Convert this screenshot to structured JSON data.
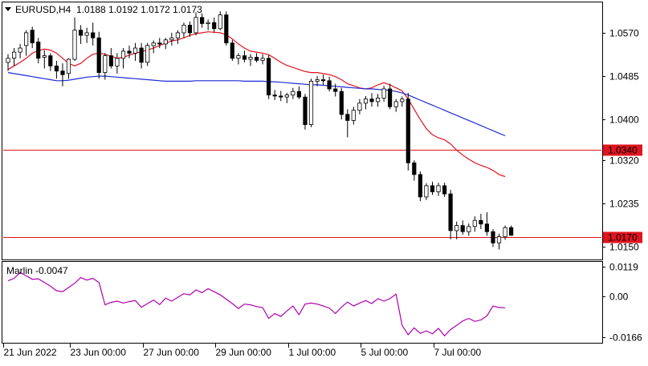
{
  "header": {
    "triangle_icon": "triangle-down-icon",
    "title": "EURUSD,H4  1.0188 1.0192 1.0172 1.0173"
  },
  "indicator": {
    "label": "Marlin -0.0047"
  },
  "colors": {
    "background": "#ffffff",
    "frame": "#000000",
    "ma_red": "#e0141e",
    "ma_blue": "#1e2bd8",
    "level_line": "#e0141e",
    "marlin": "#b000b0",
    "level_tag_bg": "#e0141e",
    "level_tag_text": "#ffffff",
    "candle_up_fill": "#ffffff",
    "candle_down_fill": "#000000"
  },
  "chart_data": [
    {
      "type": "candlestick",
      "symbol": "EURUSD",
      "timeframe": "H4",
      "ohlc_last": {
        "open": 1.0188,
        "high": 1.0192,
        "low": 1.0172,
        "close": 1.0173
      },
      "y_ticks": [
        "1.0570",
        "1.0485",
        "1.0400",
        "1.0320",
        "1.0235",
        "1.0150"
      ],
      "ylim": [
        1.0127,
        1.0628
      ],
      "x_ticks": [
        "21 Jun 2022",
        "23 Jun 00:00",
        "27 Jun 00:00",
        "29 Jun 00:00",
        "1 Jul 00:00",
        "5 Jul 00:00",
        "7 Jul 00:00"
      ],
      "horizontal_levels": [
        {
          "value": 1.034,
          "label": "1.0340"
        },
        {
          "value": 1.017,
          "label": "1.0170"
        }
      ],
      "candles": [
        [
          1.0512,
          1.0528,
          1.0495,
          1.052
        ],
        [
          1.052,
          1.054,
          1.0505,
          1.0532
        ],
        [
          1.0532,
          1.0548,
          1.052,
          1.054
        ],
        [
          1.0545,
          1.0575,
          1.0525,
          1.057
        ],
        [
          1.0575,
          1.0582,
          1.054,
          1.055
        ],
        [
          1.0552,
          1.056,
          1.051,
          1.052
        ],
        [
          1.0522,
          1.0536,
          1.05,
          1.0525
        ],
        [
          1.0525,
          1.053,
          1.0495,
          1.0505
        ],
        [
          1.0505,
          1.0515,
          1.048,
          1.0495
        ],
        [
          1.0495,
          1.051,
          1.0465,
          1.0488
        ],
        [
          1.049,
          1.052,
          1.048,
          1.0518
        ],
        [
          1.0518,
          1.06,
          1.0515,
          1.0575
        ],
        [
          1.0575,
          1.0585,
          1.0548,
          1.0565
        ],
        [
          1.0565,
          1.058,
          1.055,
          1.057
        ],
        [
          1.057,
          1.059,
          1.0545,
          1.056
        ],
        [
          1.056,
          1.0572,
          1.048,
          1.0492
        ],
        [
          1.0492,
          1.053,
          1.0478,
          1.0525
        ],
        [
          1.0525,
          1.054,
          1.05,
          1.0505
        ],
        [
          1.0505,
          1.053,
          1.049,
          1.052
        ],
        [
          1.052,
          1.054,
          1.05,
          1.0534
        ],
        [
          1.0534,
          1.0545,
          1.052,
          1.053
        ],
        [
          1.053,
          1.055,
          1.0515,
          1.054
        ],
        [
          1.054,
          1.055,
          1.05,
          1.0512
        ],
        [
          1.0512,
          1.055,
          1.0505,
          1.0545
        ],
        [
          1.0545,
          1.0555,
          1.053,
          1.055
        ],
        [
          1.055,
          1.056,
          1.054,
          1.0548
        ],
        [
          1.0548,
          1.056,
          1.0538,
          1.0556
        ],
        [
          1.0556,
          1.057,
          1.0545,
          1.056
        ],
        [
          1.056,
          1.0575,
          1.0548,
          1.057
        ],
        [
          1.057,
          1.059,
          1.056,
          1.0585
        ],
        [
          1.0585,
          1.0592,
          1.0562,
          1.057
        ],
        [
          1.057,
          1.061,
          1.0565,
          1.06
        ],
        [
          1.06,
          1.0608,
          1.058,
          1.0588
        ],
        [
          1.0588,
          1.0596,
          1.0575,
          1.059
        ],
        [
          1.059,
          1.06,
          1.057,
          1.0578
        ],
        [
          1.0578,
          1.0612,
          1.0575,
          1.0605
        ],
        [
          1.0605,
          1.0612,
          1.0545,
          1.055
        ],
        [
          1.055,
          1.0556,
          1.0515,
          1.052
        ],
        [
          1.052,
          1.053,
          1.0508,
          1.0525
        ],
        [
          1.0525,
          1.0535,
          1.0512,
          1.0518
        ],
        [
          1.0518,
          1.0528,
          1.0505,
          1.0522
        ],
        [
          1.0522,
          1.053,
          1.0512,
          1.0516
        ],
        [
          1.0516,
          1.0528,
          1.0508,
          1.052
        ],
        [
          1.052,
          1.0526,
          1.044,
          1.0448
        ],
        [
          1.0448,
          1.0458,
          1.0438,
          1.0446
        ],
        [
          1.0446,
          1.0456,
          1.0436,
          1.0444
        ],
        [
          1.0444,
          1.0452,
          1.0432,
          1.0448
        ],
        [
          1.0448,
          1.0462,
          1.044,
          1.0455
        ],
        [
          1.0455,
          1.0465,
          1.044,
          1.0444
        ],
        [
          1.0444,
          1.045,
          1.038,
          1.039
        ],
        [
          1.039,
          1.048,
          1.0385,
          1.0475
        ],
        [
          1.0475,
          1.0485,
          1.0465,
          1.0478
        ],
        [
          1.0478,
          1.0488,
          1.0468,
          1.0476
        ],
        [
          1.0476,
          1.0484,
          1.0455,
          1.046
        ],
        [
          1.046,
          1.047,
          1.0445,
          1.0455
        ],
        [
          1.0455,
          1.0462,
          1.04,
          1.041
        ],
        [
          1.041,
          1.042,
          1.0365,
          1.0398
        ],
        [
          1.0398,
          1.0425,
          1.039,
          1.0418
        ],
        [
          1.0418,
          1.044,
          1.041,
          1.0432
        ],
        [
          1.0432,
          1.0446,
          1.042,
          1.044
        ],
        [
          1.044,
          1.0452,
          1.0425,
          1.0435
        ],
        [
          1.0435,
          1.045,
          1.0425,
          1.0442
        ],
        [
          1.0442,
          1.0466,
          1.0435,
          1.046
        ],
        [
          1.046,
          1.047,
          1.042,
          1.0425
        ],
        [
          1.0425,
          1.044,
          1.0415,
          1.0435
        ],
        [
          1.0435,
          1.0445,
          1.0425,
          1.044
        ],
        [
          1.044,
          1.0452,
          1.03,
          1.0315
        ],
        [
          1.0315,
          1.032,
          1.028,
          1.0292
        ],
        [
          1.0292,
          1.0298,
          1.024,
          1.0248
        ],
        [
          1.0248,
          1.0275,
          1.0242,
          1.027
        ],
        [
          1.027,
          1.0278,
          1.0252,
          1.0258
        ],
        [
          1.0258,
          1.0276,
          1.025,
          1.027
        ],
        [
          1.027,
          1.0276,
          1.0248,
          1.0254
        ],
        [
          1.0254,
          1.0262,
          1.0165,
          1.0182
        ],
        [
          1.0182,
          1.02,
          1.0165,
          1.0192
        ],
        [
          1.0192,
          1.0202,
          1.0174,
          1.018
        ],
        [
          1.018,
          1.0196,
          1.0172,
          1.019
        ],
        [
          1.019,
          1.021,
          1.018,
          1.0202
        ],
        [
          1.0202,
          1.0215,
          1.0185,
          1.0195
        ],
        [
          1.0195,
          1.0218,
          1.0172,
          1.018
        ],
        [
          1.018,
          1.0185,
          1.015,
          1.0158
        ],
        [
          1.0158,
          1.0176,
          1.0145,
          1.017
        ],
        [
          1.017,
          1.0192,
          1.0164,
          1.0188
        ],
        [
          1.0188,
          1.0192,
          1.0172,
          1.0173
        ]
      ],
      "ma_fast": [
        1.0498,
        1.0505,
        1.0512,
        1.052,
        1.053,
        1.0535,
        1.0538,
        1.0536,
        1.053,
        1.052,
        1.051,
        1.0505,
        1.051,
        1.052,
        1.0528,
        1.053,
        1.0528,
        1.0524,
        1.052,
        1.0522,
        1.0526,
        1.053,
        1.0533,
        1.0536,
        1.054,
        1.0545,
        1.055,
        1.0554,
        1.0556,
        1.056,
        1.0565,
        1.0568,
        1.057,
        1.0572,
        1.0571,
        1.057,
        1.0566,
        1.0558,
        1.0548,
        1.054,
        1.0534,
        1.0532,
        1.053,
        1.0527,
        1.052,
        1.0512,
        1.0506,
        1.0502,
        1.0498,
        1.0494,
        1.0492,
        1.0492,
        1.049,
        1.0488,
        1.0484,
        1.0478,
        1.047,
        1.0466,
        1.0462,
        1.046,
        1.0462,
        1.0468,
        1.0472,
        1.0468,
        1.0462,
        1.0456,
        1.044,
        1.042,
        1.04,
        1.0382,
        1.037,
        1.0364,
        1.036,
        1.0352,
        1.034,
        1.033,
        1.0322,
        1.0315,
        1.031,
        1.0306,
        1.03,
        1.0292,
        1.0288
      ],
      "ma_slow": [
        1.0492,
        1.049,
        1.0488,
        1.0486,
        1.0484,
        1.0482,
        1.048,
        1.0478,
        1.0476,
        1.0476,
        1.0477,
        1.0479,
        1.0481,
        1.0483,
        1.0484,
        1.0485,
        1.0485,
        1.0484,
        1.0483,
        1.0482,
        1.0481,
        1.048,
        1.0479,
        1.0478,
        1.0477,
        1.0476,
        1.0475,
        1.0475,
        1.0475,
        1.0475,
        1.0475,
        1.0476,
        1.0476,
        1.0476,
        1.0476,
        1.0476,
        1.0476,
        1.0476,
        1.0476,
        1.0475,
        1.0475,
        1.0475,
        1.0475,
        1.0474,
        1.0474,
        1.0473,
        1.0472,
        1.0471,
        1.047,
        1.0469,
        1.0468,
        1.0468,
        1.0467,
        1.0466,
        1.0465,
        1.0464,
        1.0463,
        1.0462,
        1.0461,
        1.046,
        1.046,
        1.0459,
        1.0458,
        1.0457,
        1.0455,
        1.0452,
        1.0448,
        1.0443,
        1.0438,
        1.0433,
        1.0428,
        1.0423,
        1.0418,
        1.0413,
        1.0408,
        1.0403,
        1.0398,
        1.0393,
        1.0388,
        1.0383,
        1.0378,
        1.0373,
        1.0368
      ]
    },
    {
      "type": "line",
      "name": "Marlin",
      "y_ticks": [
        "0.0119",
        "0.00",
        "-0.0166"
      ],
      "ylim": [
        -0.0185,
        0.0135
      ],
      "values": [
        0.0062,
        0.0072,
        0.0095,
        0.0082,
        0.0068,
        0.007,
        0.0055,
        0.004,
        0.0022,
        0.0018,
        0.0035,
        0.0052,
        0.0075,
        0.0065,
        0.0072,
        0.0055,
        -0.0035,
        -0.0025,
        -0.002,
        -0.0028,
        -0.0022,
        -0.0018,
        -0.0045,
        -0.003,
        -0.0016,
        -0.0034,
        -0.0008,
        -0.002,
        -0.0005,
        0.001,
        0.0005,
        0.0025,
        0.0014,
        0.003,
        0.0018,
        0.0005,
        -0.0012,
        -0.003,
        -0.005,
        -0.0032,
        -0.0035,
        -0.0042,
        -0.0046,
        -0.009,
        -0.007,
        -0.0082,
        -0.006,
        -0.004,
        -0.0075,
        -0.0032,
        -0.0028,
        -0.0032,
        -0.004,
        -0.0048,
        -0.007,
        -0.0044,
        -0.0024,
        -0.004,
        -0.0028,
        -0.0018,
        -0.003,
        -0.001,
        -0.002,
        -0.001,
        0.0008,
        -0.0118,
        -0.0156,
        -0.0128,
        -0.015,
        -0.014,
        -0.0152,
        -0.013,
        -0.016,
        -0.0135,
        -0.0118,
        -0.01,
        -0.009,
        -0.0102,
        -0.0096,
        -0.008,
        -0.004,
        -0.0046,
        -0.0047
      ]
    }
  ]
}
